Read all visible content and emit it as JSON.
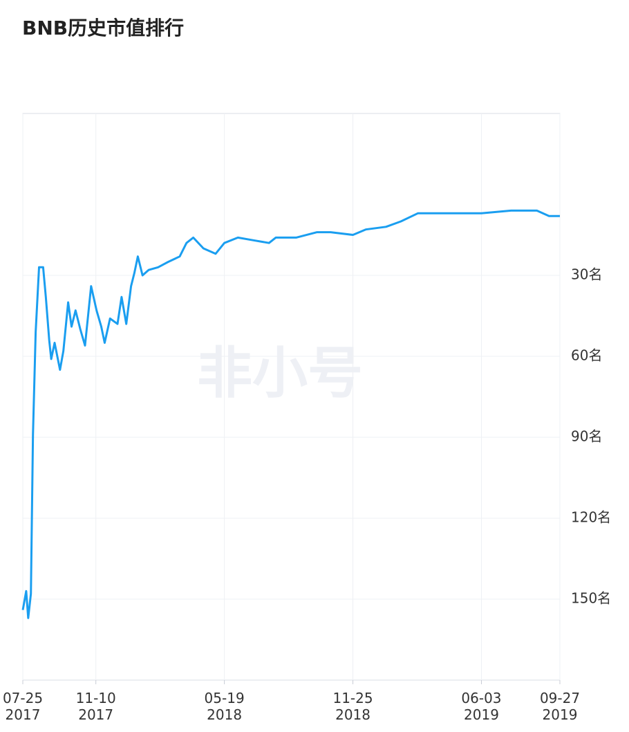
{
  "chart_data": {
    "type": "line",
    "title": "BNB历史市值排行",
    "watermark": "非小号",
    "x": [
      "2017-07-25",
      "2017-07-30",
      "2017-08-02",
      "2017-08-06",
      "2017-08-09",
      "2017-08-13",
      "2017-08-18",
      "2017-08-24",
      "2017-08-28",
      "2017-09-02",
      "2017-09-05",
      "2017-09-10",
      "2017-09-18",
      "2017-09-23",
      "2017-09-30",
      "2017-10-05",
      "2017-10-11",
      "2017-10-18",
      "2017-10-25",
      "2017-11-03",
      "2017-11-11",
      "2017-11-18",
      "2017-11-23",
      "2017-12-01",
      "2017-12-12",
      "2017-12-18",
      "2017-12-25",
      "2018-01-01",
      "2018-01-06",
      "2018-01-11",
      "2018-01-18",
      "2018-01-27",
      "2018-02-10",
      "2018-02-25",
      "2018-03-14",
      "2018-03-24",
      "2018-04-03",
      "2018-04-18",
      "2018-05-06",
      "2018-05-19",
      "2018-06-08",
      "2018-07-01",
      "2018-07-24",
      "2018-08-03",
      "2018-09-02",
      "2018-10-03",
      "2018-10-23",
      "2018-11-25",
      "2018-12-14",
      "2019-01-13",
      "2019-02-04",
      "2019-03-01",
      "2019-04-03",
      "2019-06-03",
      "2019-07-17",
      "2019-08-24",
      "2019-09-11",
      "2019-09-27"
    ],
    "series": [
      {
        "name": "BNB",
        "color": "#1a9ef0",
        "values": [
          154,
          147,
          157,
          148,
          89,
          51,
          27,
          27,
          38,
          54,
          61,
          55,
          65,
          58,
          40,
          49,
          43,
          50,
          56,
          34,
          43,
          49,
          55,
          46,
          48,
          38,
          48,
          34,
          29,
          23,
          30,
          28,
          27,
          25,
          23,
          18,
          16,
          20,
          22,
          18,
          16,
          17,
          18,
          16,
          16,
          14,
          14,
          15,
          13,
          12,
          10,
          7,
          7,
          7,
          6,
          6,
          8,
          8
        ]
      }
    ],
    "xlim": [
      "2017-07-25",
      "2019-09-27"
    ],
    "xticks": [
      {
        "value": "2017-07-25",
        "label": "07-25\n2017"
      },
      {
        "value": "2017-11-10",
        "label": "11-10\n2017"
      },
      {
        "value": "2018-05-19",
        "label": "05-19\n2018"
      },
      {
        "value": "2018-11-25",
        "label": "11-25\n2018"
      },
      {
        "value": "2019-06-03",
        "label": "06-03\n2019"
      },
      {
        "value": "2019-09-27",
        "label": "09-27\n2019"
      }
    ],
    "ylim": [
      180,
      -30
    ],
    "yticks": [
      {
        "value": 30,
        "label": "30名"
      },
      {
        "value": 60,
        "label": "60名"
      },
      {
        "value": 90,
        "label": "90名"
      },
      {
        "value": 120,
        "label": "120名"
      },
      {
        "value": 150,
        "label": "150名"
      }
    ],
    "grid": true
  }
}
